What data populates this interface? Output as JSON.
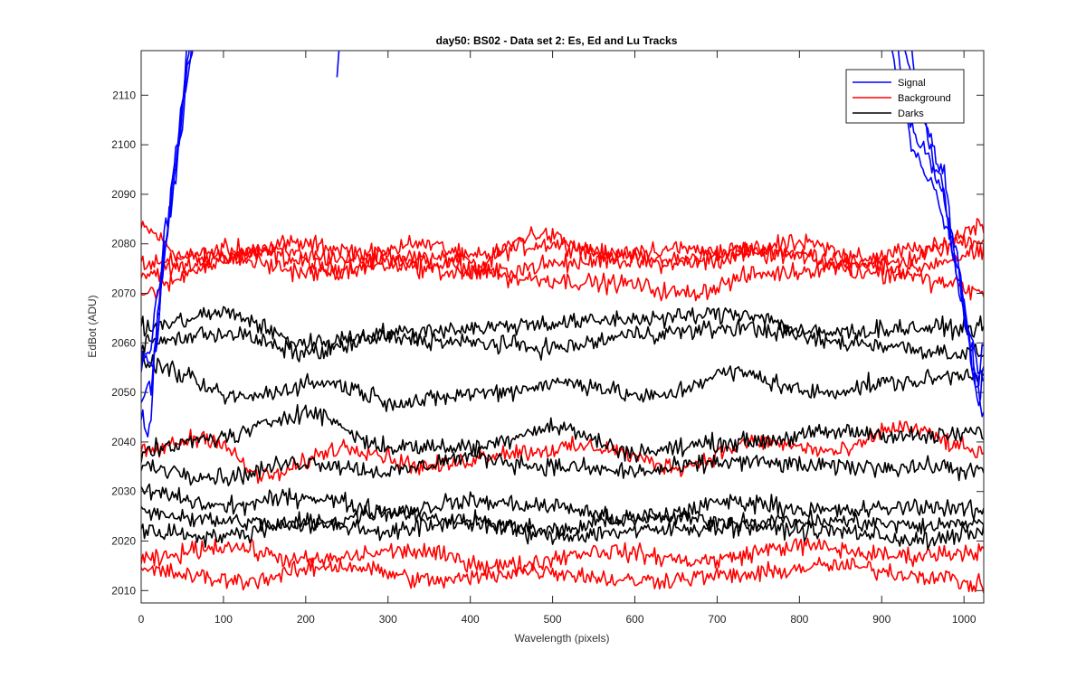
{
  "chart_data": {
    "type": "line",
    "title": "day50: BS02 - Data set 2: Es, Ed and Lu Tracks",
    "xlabel": "Wavelength (pixels)",
    "ylabel": "EdBot (ADU)",
    "xlim": [
      0,
      1024
    ],
    "ylim": [
      2007.5,
      2119
    ],
    "xticks": [
      0,
      100,
      200,
      300,
      400,
      500,
      600,
      700,
      800,
      900,
      1000
    ],
    "yticks": [
      2010,
      2020,
      2030,
      2040,
      2050,
      2060,
      2070,
      2080,
      2090,
      2100,
      2110
    ],
    "grid": false,
    "legend_position": "top-right",
    "legend": [
      "Signal",
      "Background",
      "Darks"
    ],
    "colors": {
      "Signal": "#0000ff",
      "Background": "#ff0000",
      "Darks": "#000000"
    },
    "noise_amplitude_adu": 1.8,
    "series": [
      {
        "group": "Signal",
        "points": [
          [
            0,
            2048
          ],
          [
            12,
            2052
          ],
          [
            20,
            2065
          ],
          [
            30,
            2080
          ],
          [
            40,
            2095
          ],
          [
            50,
            2108
          ],
          [
            58,
            2125
          ]
        ]
      },
      {
        "group": "Signal",
        "points": [
          [
            0,
            2055
          ],
          [
            10,
            2058
          ],
          [
            20,
            2070
          ],
          [
            32,
            2085
          ],
          [
            45,
            2100
          ],
          [
            55,
            2115
          ],
          [
            62,
            2125
          ]
        ]
      },
      {
        "group": "Signal",
        "points": [
          [
            0,
            2045
          ],
          [
            10,
            2042
          ],
          [
            18,
            2060
          ],
          [
            28,
            2078
          ],
          [
            40,
            2092
          ],
          [
            52,
            2110
          ],
          [
            68,
            2125
          ]
        ]
      },
      {
        "group": "Signal",
        "points": [
          [
            0,
            2058
          ],
          [
            14,
            2055
          ],
          [
            24,
            2072
          ],
          [
            36,
            2088
          ],
          [
            48,
            2102
          ],
          [
            60,
            2118
          ],
          [
            70,
            2125
          ]
        ]
      },
      {
        "group": "Signal",
        "points": [
          [
            238,
            2115
          ],
          [
            242,
            2121
          ]
        ]
      },
      {
        "group": "Signal",
        "points": [
          [
            905,
            2125
          ],
          [
            930,
            2105
          ],
          [
            955,
            2098
          ],
          [
            975,
            2090
          ],
          [
            990,
            2075
          ],
          [
            1005,
            2062
          ],
          [
            1024,
            2052
          ]
        ]
      },
      {
        "group": "Signal",
        "points": [
          [
            912,
            2125
          ],
          [
            938,
            2100
          ],
          [
            960,
            2092
          ],
          [
            982,
            2082
          ],
          [
            998,
            2068
          ],
          [
            1012,
            2055
          ],
          [
            1024,
            2045
          ]
        ]
      },
      {
        "group": "Signal",
        "points": [
          [
            920,
            2125
          ],
          [
            945,
            2108
          ],
          [
            968,
            2095
          ],
          [
            988,
            2080
          ],
          [
            1002,
            2065
          ],
          [
            1015,
            2050
          ],
          [
            1024,
            2060
          ]
        ]
      },
      {
        "group": "Signal",
        "points": [
          [
            928,
            2125
          ],
          [
            952,
            2104
          ],
          [
            972,
            2096
          ],
          [
            992,
            2076
          ],
          [
            1008,
            2060
          ],
          [
            1018,
            2048
          ],
          [
            1024,
            2055
          ]
        ]
      },
      {
        "group": "Background",
        "points": [
          [
            0,
            2083
          ],
          [
            60,
            2077
          ],
          [
            140,
            2078
          ],
          [
            240,
            2075
          ],
          [
            380,
            2077
          ],
          [
            500,
            2080
          ],
          [
            620,
            2076
          ],
          [
            740,
            2079
          ],
          [
            860,
            2077
          ],
          [
            960,
            2079
          ],
          [
            1024,
            2084
          ]
        ]
      },
      {
        "group": "Background",
        "points": [
          [
            0,
            2074
          ],
          [
            80,
            2076
          ],
          [
            180,
            2080
          ],
          [
            300,
            2078
          ],
          [
            400,
            2075
          ],
          [
            480,
            2082
          ],
          [
            560,
            2078
          ],
          [
            680,
            2076
          ],
          [
            800,
            2080
          ],
          [
            900,
            2076
          ],
          [
            1024,
            2081
          ]
        ]
      },
      {
        "group": "Background",
        "points": [
          [
            0,
            2070
          ],
          [
            100,
            2077
          ],
          [
            220,
            2074
          ],
          [
            340,
            2080
          ],
          [
            460,
            2073
          ],
          [
            580,
            2072
          ],
          [
            660,
            2070
          ],
          [
            760,
            2074
          ],
          [
            880,
            2076
          ],
          [
            980,
            2072
          ],
          [
            1024,
            2070
          ]
        ]
      },
      {
        "group": "Background",
        "points": [
          [
            0,
            2076
          ],
          [
            120,
            2079
          ],
          [
            260,
            2077
          ],
          [
            400,
            2074
          ],
          [
            520,
            2076
          ],
          [
            640,
            2079
          ],
          [
            760,
            2078
          ],
          [
            900,
            2074
          ],
          [
            1024,
            2078
          ]
        ]
      },
      {
        "group": "Background",
        "points": [
          [
            0,
            2038
          ],
          [
            80,
            2041
          ],
          [
            150,
            2033
          ],
          [
            250,
            2039
          ],
          [
            350,
            2035
          ],
          [
            450,
            2038
          ],
          [
            550,
            2039
          ],
          [
            650,
            2035
          ],
          [
            750,
            2040
          ],
          [
            850,
            2038
          ],
          [
            920,
            2043
          ],
          [
            1024,
            2038
          ]
        ]
      },
      {
        "group": "Background",
        "points": [
          [
            0,
            2016
          ],
          [
            100,
            2019
          ],
          [
            200,
            2016
          ],
          [
            320,
            2018
          ],
          [
            440,
            2015
          ],
          [
            560,
            2018
          ],
          [
            680,
            2016
          ],
          [
            800,
            2019
          ],
          [
            920,
            2017
          ],
          [
            1024,
            2018
          ]
        ]
      },
      {
        "group": "Background",
        "points": [
          [
            0,
            2014
          ],
          [
            120,
            2012
          ],
          [
            240,
            2015
          ],
          [
            360,
            2012
          ],
          [
            480,
            2014
          ],
          [
            600,
            2012
          ],
          [
            720,
            2013
          ],
          [
            840,
            2015
          ],
          [
            960,
            2013
          ],
          [
            1024,
            2011
          ]
        ]
      },
      {
        "group": "Darks",
        "points": [
          [
            0,
            2063
          ],
          [
            100,
            2066
          ],
          [
            200,
            2060
          ],
          [
            300,
            2062
          ],
          [
            400,
            2063
          ],
          [
            500,
            2064
          ],
          [
            620,
            2065
          ],
          [
            730,
            2066
          ],
          [
            820,
            2062
          ],
          [
            940,
            2063
          ],
          [
            1024,
            2063
          ]
        ]
      },
      {
        "group": "Darks",
        "points": [
          [
            0,
            2060
          ],
          [
            100,
            2062
          ],
          [
            200,
            2058
          ],
          [
            300,
            2061
          ],
          [
            400,
            2060
          ],
          [
            500,
            2059
          ],
          [
            620,
            2062
          ],
          [
            730,
            2063
          ],
          [
            860,
            2060
          ],
          [
            1000,
            2058
          ],
          [
            1024,
            2058
          ]
        ]
      },
      {
        "group": "Darks",
        "points": [
          [
            0,
            2056
          ],
          [
            120,
            2049
          ],
          [
            220,
            2052
          ],
          [
            320,
            2048
          ],
          [
            420,
            2050
          ],
          [
            520,
            2052
          ],
          [
            620,
            2049
          ],
          [
            720,
            2054
          ],
          [
            820,
            2050
          ],
          [
            920,
            2052
          ],
          [
            1024,
            2054
          ]
        ]
      },
      {
        "group": "Darks",
        "points": [
          [
            0,
            2038
          ],
          [
            100,
            2041
          ],
          [
            200,
            2046
          ],
          [
            300,
            2039
          ],
          [
            400,
            2039
          ],
          [
            500,
            2043
          ],
          [
            600,
            2038
          ],
          [
            720,
            2040
          ],
          [
            860,
            2042
          ],
          [
            960,
            2041
          ],
          [
            1024,
            2042
          ]
        ]
      },
      {
        "group": "Darks",
        "points": [
          [
            0,
            2035
          ],
          [
            100,
            2033
          ],
          [
            200,
            2036
          ],
          [
            300,
            2034
          ],
          [
            400,
            2037
          ],
          [
            500,
            2035
          ],
          [
            600,
            2034
          ],
          [
            720,
            2036
          ],
          [
            840,
            2035
          ],
          [
            960,
            2035
          ],
          [
            1024,
            2034
          ]
        ]
      },
      {
        "group": "Darks",
        "points": [
          [
            0,
            2030
          ],
          [
            100,
            2027
          ],
          [
            200,
            2029
          ],
          [
            300,
            2026
          ],
          [
            400,
            2028
          ],
          [
            500,
            2027
          ],
          [
            600,
            2024
          ],
          [
            720,
            2028
          ],
          [
            840,
            2026
          ],
          [
            960,
            2027
          ],
          [
            1024,
            2026
          ]
        ]
      },
      {
        "group": "Darks",
        "points": [
          [
            0,
            2026
          ],
          [
            100,
            2024
          ],
          [
            200,
            2023
          ],
          [
            300,
            2026
          ],
          [
            400,
            2024
          ],
          [
            500,
            2022
          ],
          [
            600,
            2025
          ],
          [
            720,
            2024
          ],
          [
            840,
            2024
          ],
          [
            960,
            2023
          ],
          [
            1024,
            2024
          ]
        ]
      },
      {
        "group": "Darks",
        "points": [
          [
            0,
            2022
          ],
          [
            100,
            2021
          ],
          [
            200,
            2024
          ],
          [
            300,
            2022
          ],
          [
            400,
            2024
          ],
          [
            500,
            2021
          ],
          [
            600,
            2022
          ],
          [
            720,
            2023
          ],
          [
            840,
            2022
          ],
          [
            960,
            2020
          ],
          [
            1024,
            2022
          ]
        ]
      }
    ]
  }
}
